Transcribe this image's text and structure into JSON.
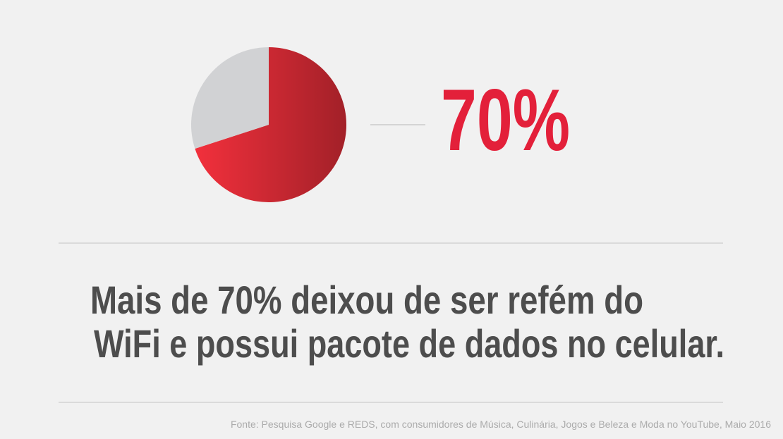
{
  "chart_data": {
    "type": "pie",
    "values": [
      70,
      30
    ],
    "value_labels": [
      "70%",
      null
    ],
    "colors": [
      "#f2303c",
      "#d1d2d4"
    ],
    "headline": [
      "Mais de 70% deixou de ser refém do",
      "WiFi e possui pacote de dados no celular."
    ],
    "source": "Fonte: Pesquisa Google e REDS, com consumidores de Música, Culinária, Jogos e Beleza e Moda no YouTube, Maio 2016"
  }
}
